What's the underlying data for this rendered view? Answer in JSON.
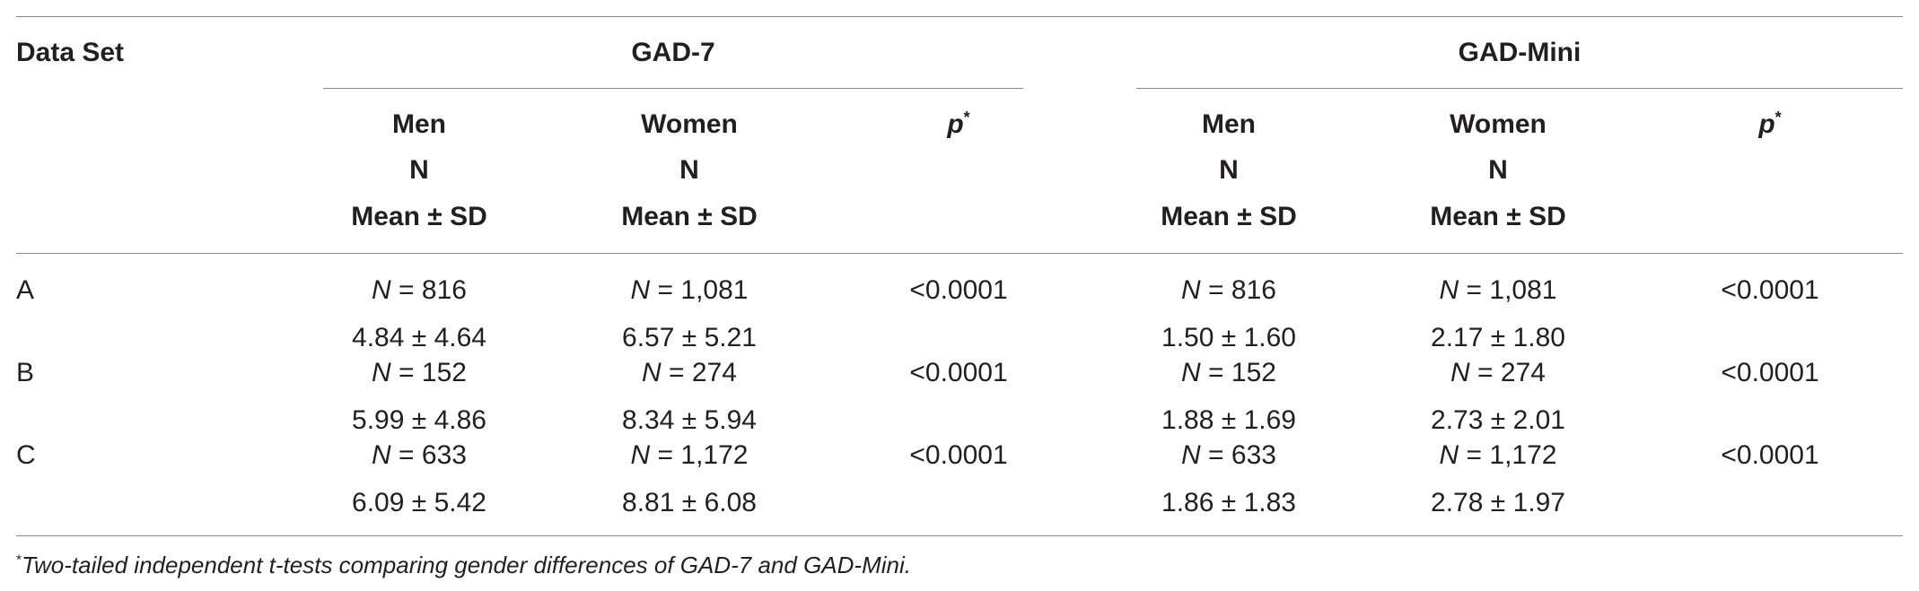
{
  "header": {
    "data_set_label": "Data Set",
    "groups": [
      {
        "label": "GAD-7"
      },
      {
        "label": "GAD-Mini"
      }
    ],
    "subcols": {
      "men": "Men",
      "women": "Women",
      "n": "N",
      "mean_sd": "Mean ± SD",
      "p": "p",
      "p_marker": "*"
    }
  },
  "rows": [
    {
      "label": "A",
      "gad7": {
        "men_n": "= 816",
        "women_n": "= 1,081",
        "men_mean": "4.84 ± 4.64",
        "women_mean": "6.57 ± 5.21",
        "p": "<0.0001"
      },
      "gadmini": {
        "men_n": "= 816",
        "women_n": "= 1,081",
        "men_mean": "1.50 ± 1.60",
        "women_mean": "2.17 ± 1.80",
        "p": "<0.0001"
      }
    },
    {
      "label": "B",
      "gad7": {
        "men_n": "= 152",
        "women_n": "= 274",
        "men_mean": "5.99 ± 4.86",
        "women_mean": "8.34 ± 5.94",
        "p": "<0.0001"
      },
      "gadmini": {
        "men_n": "= 152",
        "women_n": "= 274",
        "men_mean": "1.88 ± 1.69",
        "women_mean": "2.73 ± 2.01",
        "p": "<0.0001"
      }
    },
    {
      "label": "C",
      "gad7": {
        "men_n": "= 633",
        "women_n": "= 1,172",
        "men_mean": "6.09 ± 5.42",
        "women_mean": "8.81 ± 6.08",
        "p": "<0.0001"
      },
      "gadmini": {
        "men_n": "= 633",
        "women_n": "= 1,172",
        "men_mean": "1.86 ± 1.83",
        "women_mean": "2.78 ± 1.97",
        "p": "<0.0001"
      }
    }
  ],
  "n_prefix": "N",
  "footnote": {
    "marker": "*",
    "text": "Two-tailed independent t-tests comparing gender differences of GAD-7 and GAD-Mini."
  }
}
